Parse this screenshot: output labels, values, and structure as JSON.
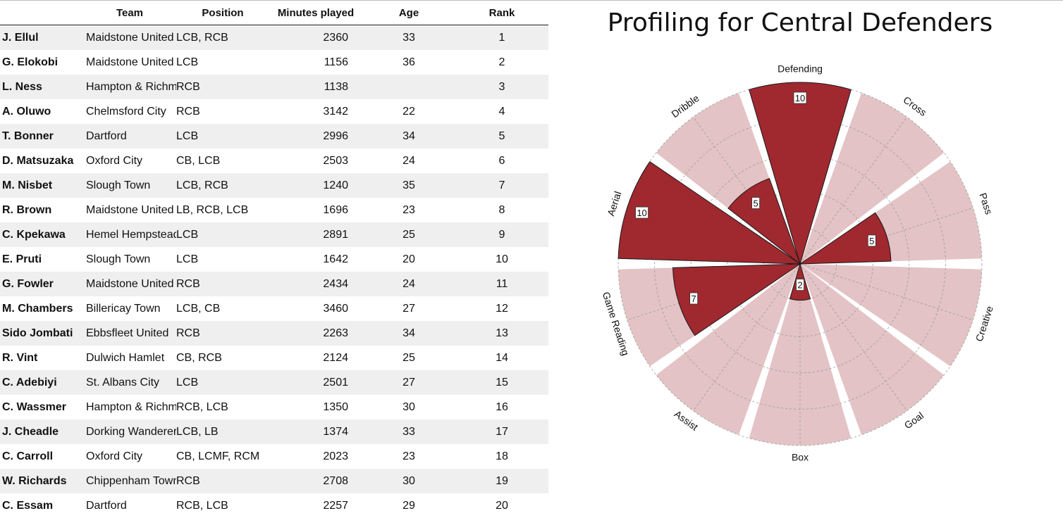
{
  "table": {
    "headers": {
      "name": "",
      "team": "Team",
      "position": "Position",
      "minutes": "Minutes played",
      "age": "Age",
      "rank": "Rank"
    },
    "rows": [
      {
        "name": "J. Ellul",
        "team": "Maidstone United",
        "position": "LCB, RCB",
        "minutes": "2360",
        "age": "33",
        "rank": "1"
      },
      {
        "name": "G. Elokobi",
        "team": "Maidstone United",
        "position": "LCB",
        "minutes": "1156",
        "age": "36",
        "rank": "2"
      },
      {
        "name": "L. Ness",
        "team": "Hampton & Richmond",
        "position": "RCB",
        "minutes": "1138",
        "age": "",
        "rank": "3"
      },
      {
        "name": "A. Oluwo",
        "team": "Chelmsford City",
        "position": "RCB",
        "minutes": "3142",
        "age": "22",
        "rank": "4"
      },
      {
        "name": "T. Bonner",
        "team": "Dartford",
        "position": "LCB",
        "minutes": "2996",
        "age": "34",
        "rank": "5"
      },
      {
        "name": "D. Matsuzaka",
        "team": "Oxford City",
        "position": "CB, LCB",
        "minutes": "2503",
        "age": "24",
        "rank": "6"
      },
      {
        "name": "M. Nisbet",
        "team": "Slough Town",
        "position": "LCB, RCB",
        "minutes": "1240",
        "age": "35",
        "rank": "7"
      },
      {
        "name": "R. Brown",
        "team": "Maidstone United",
        "position": "LB, RCB, LCB",
        "minutes": "1696",
        "age": "23",
        "rank": "8"
      },
      {
        "name": "C. Kpekawa",
        "team": "Hemel Hempstead Town",
        "position": "LCB",
        "minutes": "2891",
        "age": "25",
        "rank": "9"
      },
      {
        "name": "E. Pruti",
        "team": "Slough Town",
        "position": "LCB",
        "minutes": "1642",
        "age": "20",
        "rank": "10"
      },
      {
        "name": "G. Fowler",
        "team": "Maidstone United",
        "position": "RCB",
        "minutes": "2434",
        "age": "24",
        "rank": "11"
      },
      {
        "name": "M. Chambers",
        "team": "Billericay Town",
        "position": "LCB, CB",
        "minutes": "3460",
        "age": "27",
        "rank": "12"
      },
      {
        "name": "Sido Jombati",
        "team": "Ebbsfleet United",
        "position": "RCB",
        "minutes": "2263",
        "age": "34",
        "rank": "13"
      },
      {
        "name": "R. Vint",
        "team": "Dulwich Hamlet",
        "position": "CB, RCB",
        "minutes": "2124",
        "age": "25",
        "rank": "14"
      },
      {
        "name": "C. Adebiyi",
        "team": "St. Albans City",
        "position": "LCB",
        "minutes": "2501",
        "age": "27",
        "rank": "15"
      },
      {
        "name": "C. Wassmer",
        "team": "Hampton & Richmond",
        "position": "RCB, LCB",
        "minutes": "1350",
        "age": "30",
        "rank": "16"
      },
      {
        "name": "J. Cheadle",
        "team": "Dorking Wanderers",
        "position": "LCB, LB",
        "minutes": "1374",
        "age": "33",
        "rank": "17"
      },
      {
        "name": "C. Carroll",
        "team": "Oxford City",
        "position": "CB, LCMF, RCM",
        "minutes": "2023",
        "age": "23",
        "rank": "18"
      },
      {
        "name": "W. Richards",
        "team": "Chippenham Town",
        "position": "RCB",
        "minutes": "2708",
        "age": "30",
        "rank": "19"
      },
      {
        "name": "C. Essam",
        "team": "Dartford",
        "position": "RCB, LCB",
        "minutes": "2257",
        "age": "29",
        "rank": "20"
      }
    ]
  },
  "chart_data": {
    "type": "polar-bar",
    "title": "Profiling for Central Defenders",
    "categories": [
      "Defending",
      "Cross",
      "Pass",
      "Creative",
      "Goal",
      "Box",
      "Assist",
      "Game Reading",
      "Aerial",
      "Dribble"
    ],
    "values": [
      10,
      0,
      5,
      0,
      0,
      2,
      0,
      7,
      10,
      5
    ],
    "value_labels": [
      "10",
      "",
      "5",
      "",
      "",
      "2",
      "",
      "7",
      "10",
      "5"
    ],
    "rlim": [
      0,
      10
    ],
    "grid": true,
    "colors": {
      "value": "#a0282f",
      "background": "#e3c3c5",
      "grid": "#9a9a9a"
    }
  }
}
